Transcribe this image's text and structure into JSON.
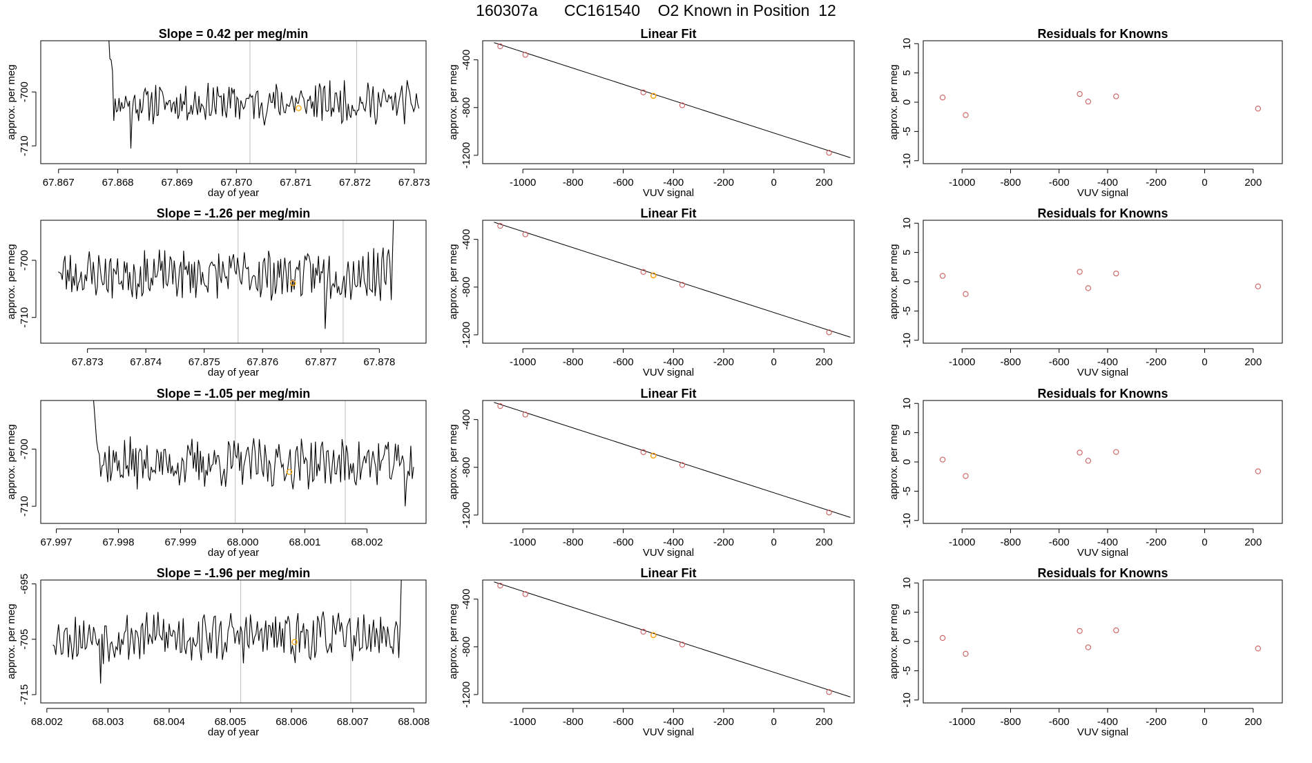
{
  "figure": {
    "title": "160307a      CC161540    O2 Known in Position  12"
  },
  "colors": {
    "line": "#000000",
    "frame": "#000000",
    "refline": "#bebebe",
    "known_point": "#cd5c5c",
    "sample_point": "#ffa500"
  },
  "chart_data": [
    {
      "type": "line",
      "title": "Slope =  0.42  per meg/min",
      "xlabel": "day of year",
      "ylabel": "approx. per meg",
      "xlim": [
        67.8667,
        67.8732
      ],
      "ylim": [
        -713.3,
        -690.5
      ],
      "xticks": [
        67.867,
        67.868,
        67.869,
        67.87,
        67.871,
        67.872,
        67.873
      ],
      "xtick_labels": [
        "67.867",
        "67.868",
        "67.869",
        "67.870",
        "67.871",
        "67.872",
        "67.873"
      ],
      "yticks": [
        -710,
        -700
      ],
      "ytick_labels": [
        "-710",
        "-700"
      ],
      "vlines": [
        67.87023,
        67.87203
      ],
      "sample_point": {
        "x": 67.87105,
        "y": -703.0
      },
      "series": [
        {
          "x_start": 67.8678,
          "x_end": 67.87308,
          "n": 240,
          "start_value": -682,
          "base": -702,
          "amp": 2.0,
          "settle": 6,
          "seed": 11,
          "features": [
            {
              "x": 67.86822,
              "y": -710.5
            },
            {
              "x": 67.86848,
              "y": -700.5
            }
          ]
        }
      ]
    },
    {
      "type": "scatter",
      "title": "Linear Fit",
      "xlabel": "VUV signal",
      "ylabel": "approx. per meg",
      "xlim": [
        -1160,
        320
      ],
      "ylim": [
        -1270,
        -240
      ],
      "xticks": [
        -1000,
        -800,
        -600,
        -400,
        -200,
        0,
        200
      ],
      "xtick_labels": [
        "-1000",
        "-800",
        "-600",
        "-400",
        "-200",
        "0",
        "200"
      ],
      "yticks": [
        -1200,
        -800,
        -400
      ],
      "ytick_labels": [
        "-1200",
        "-800",
        "-400"
      ],
      "fit_line": [
        [
          -1115,
          -256
        ],
        [
          305,
          -1220
        ]
      ],
      "points": [
        {
          "x": -1090,
          "y": -287
        },
        {
          "x": -990,
          "y": -358
        },
        {
          "x": -520,
          "y": -673
        },
        {
          "x": -480,
          "y": -702
        },
        {
          "x": -365,
          "y": -781
        },
        {
          "x": 220,
          "y": -1179
        }
      ],
      "sample_point": {
        "x": -480,
        "y": -702
      }
    },
    {
      "type": "scatter",
      "title": "Residuals for Knowns",
      "xlabel": "VUV signal",
      "ylabel": "approx. per meg",
      "xlim": [
        -1160,
        320
      ],
      "ylim": [
        -10.5,
        10.5
      ],
      "xticks": [
        -1000,
        -800,
        -600,
        -400,
        -200,
        0,
        200
      ],
      "xtick_labels": [
        "-1000",
        "-800",
        "-600",
        "-400",
        "-200",
        "0",
        "200"
      ],
      "yticks": [
        -10,
        -5,
        0,
        5,
        10
      ],
      "ytick_labels": [
        "-10",
        "-5",
        "0",
        "5",
        "10"
      ],
      "points": [
        {
          "x": -1080,
          "y": 0.8
        },
        {
          "x": -985,
          "y": -2.2
        },
        {
          "x": -515,
          "y": 1.4
        },
        {
          "x": -480,
          "y": 0.1
        },
        {
          "x": -365,
          "y": 1.0
        },
        {
          "x": 220,
          "y": -1.1
        }
      ]
    },
    {
      "type": "line",
      "title": "Slope =  -1.26  per meg/min",
      "xlabel": "day of year",
      "ylabel": "approx. per meg",
      "xlim": [
        67.8722,
        67.8788
      ],
      "ylim": [
        -714.5,
        -693
      ],
      "xticks": [
        67.873,
        67.874,
        67.875,
        67.876,
        67.877,
        67.878
      ],
      "xtick_labels": [
        "67.873",
        "67.874",
        "67.875",
        "67.876",
        "67.877",
        "67.878"
      ],
      "yticks": [
        -710,
        -700
      ],
      "ytick_labels": [
        "-710",
        "-700"
      ],
      "vlines": [
        67.87558,
        67.87738
      ],
      "sample_point": {
        "x": 67.87652,
        "y": -704.0
      },
      "series": [
        {
          "x_start": 67.8725,
          "x_end": 67.87825,
          "n": 250,
          "start_value": -702,
          "base": -702.5,
          "amp": 2.3,
          "settle": 2,
          "seed": 23,
          "features": [
            {
              "x": 67.87708,
              "y": -712.0
            },
            {
              "x": 67.878,
              "y": -704.0
            },
            {
              "x": 67.87825,
              "y": -690.0
            }
          ]
        }
      ]
    },
    {
      "type": "scatter",
      "title": "Linear Fit",
      "xlabel": "VUV signal",
      "ylabel": "approx. per meg",
      "xlim": [
        -1160,
        320
      ],
      "ylim": [
        -1270,
        -240
      ],
      "xticks": [
        -1000,
        -800,
        -600,
        -400,
        -200,
        0,
        200
      ],
      "xtick_labels": [
        "-1000",
        "-800",
        "-600",
        "-400",
        "-200",
        "0",
        "200"
      ],
      "yticks": [
        -1200,
        -800,
        -400
      ],
      "ytick_labels": [
        "-1200",
        "-800",
        "-400"
      ],
      "fit_line": [
        [
          -1115,
          -256
        ],
        [
          305,
          -1220
        ]
      ],
      "points": [
        {
          "x": -1090,
          "y": -287
        },
        {
          "x": -990,
          "y": -358
        },
        {
          "x": -520,
          "y": -673
        },
        {
          "x": -480,
          "y": -702
        },
        {
          "x": -365,
          "y": -781
        },
        {
          "x": 220,
          "y": -1179
        }
      ],
      "sample_point": {
        "x": -480,
        "y": -702
      }
    },
    {
      "type": "scatter",
      "title": "Residuals for Knowns",
      "xlabel": "VUV signal",
      "ylabel": "approx. per meg",
      "xlim": [
        -1160,
        320
      ],
      "ylim": [
        -10.5,
        10.5
      ],
      "xticks": [
        -1000,
        -800,
        -600,
        -400,
        -200,
        0,
        200
      ],
      "xtick_labels": [
        "-1000",
        "-800",
        "-600",
        "-400",
        "-200",
        "0",
        "200"
      ],
      "yticks": [
        -10,
        -5,
        0,
        5,
        10
      ],
      "ytick_labels": [
        "-10",
        "-5",
        "0",
        "5",
        "10"
      ],
      "points": [
        {
          "x": -1080,
          "y": 1.0
        },
        {
          "x": -985,
          "y": -2.1
        },
        {
          "x": -515,
          "y": 1.7
        },
        {
          "x": -480,
          "y": -1.1
        },
        {
          "x": -365,
          "y": 1.4
        },
        {
          "x": 220,
          "y": -0.8
        }
      ]
    },
    {
      "type": "line",
      "title": "Slope =  -1.05  per meg/min",
      "xlabel": "day of year",
      "ylabel": "approx. per meg",
      "xlim": [
        67.99675,
        68.00295
      ],
      "ylim": [
        -713,
        -691.5
      ],
      "xticks": [
        67.997,
        67.998,
        67.999,
        68.0,
        68.001,
        68.002
      ],
      "xtick_labels": [
        "67.997",
        "67.998",
        "67.999",
        "68.000",
        "68.001",
        "68.002"
      ],
      "yticks": [
        -710,
        -700
      ],
      "ytick_labels": [
        "-710",
        "-700"
      ],
      "vlines": [
        67.99988,
        68.00165
      ],
      "sample_point": {
        "x": 68.00075,
        "y": -704.0
      },
      "series": [
        {
          "x_start": 67.99758,
          "x_end": 68.00275,
          "n": 230,
          "start_value": -690,
          "base": -702.5,
          "amp": 2.3,
          "settle": 6,
          "seed": 37,
          "features": [
            {
              "x": 68.00262,
              "y": -710.0
            }
          ]
        }
      ]
    },
    {
      "type": "scatter",
      "title": "Linear Fit",
      "xlabel": "VUV signal",
      "ylabel": "approx. per meg",
      "xlim": [
        -1160,
        320
      ],
      "ylim": [
        -1270,
        -240
      ],
      "xticks": [
        -1000,
        -800,
        -600,
        -400,
        -200,
        0,
        200
      ],
      "xtick_labels": [
        "-1000",
        "-800",
        "-600",
        "-400",
        "-200",
        "0",
        "200"
      ],
      "yticks": [
        -1200,
        -800,
        -400
      ],
      "ytick_labels": [
        "-1200",
        "-800",
        "-400"
      ],
      "fit_line": [
        [
          -1115,
          -256
        ],
        [
          305,
          -1220
        ]
      ],
      "points": [
        {
          "x": -1090,
          "y": -287
        },
        {
          "x": -990,
          "y": -358
        },
        {
          "x": -520,
          "y": -673
        },
        {
          "x": -480,
          "y": -702
        },
        {
          "x": -365,
          "y": -781
        },
        {
          "x": 220,
          "y": -1179
        }
      ],
      "sample_point": {
        "x": -480,
        "y": -702
      }
    },
    {
      "type": "scatter",
      "title": "Residuals for Knowns",
      "xlabel": "VUV signal",
      "ylabel": "approx. per meg",
      "xlim": [
        -1160,
        320
      ],
      "ylim": [
        -10.5,
        10.5
      ],
      "xticks": [
        -1000,
        -800,
        -600,
        -400,
        -200,
        0,
        200
      ],
      "xtick_labels": [
        "-1000",
        "-800",
        "-600",
        "-400",
        "-200",
        "0",
        "200"
      ],
      "yticks": [
        -10,
        -5,
        0,
        5,
        10
      ],
      "ytick_labels": [
        "-10",
        "-5",
        "0",
        "5",
        "10"
      ],
      "points": [
        {
          "x": -1080,
          "y": 0.4
        },
        {
          "x": -985,
          "y": -2.4
        },
        {
          "x": -515,
          "y": 1.6
        },
        {
          "x": -480,
          "y": 0.2
        },
        {
          "x": -365,
          "y": 1.7
        },
        {
          "x": 220,
          "y": -1.6
        }
      ]
    },
    {
      "type": "line",
      "title": "Slope =  -1.96  per meg/min",
      "xlabel": "day of year",
      "ylabel": "approx. per meg",
      "xlim": [
        68.0019,
        68.0082
      ],
      "ylim": [
        -716.5,
        -694.3
      ],
      "xticks": [
        68.002,
        68.003,
        68.004,
        68.005,
        68.006,
        68.007,
        68.008
      ],
      "xtick_labels": [
        "68.002",
        "68.003",
        "68.004",
        "68.005",
        "68.006",
        "68.007",
        "68.008"
      ],
      "yticks": [
        -715,
        -705,
        -695
      ],
      "ytick_labels": [
        "-715",
        "-705",
        "-695"
      ],
      "vlines": [
        68.00517,
        68.00697
      ],
      "sample_point": {
        "x": 68.00605,
        "y": -705.5
      },
      "series": [
        {
          "x_start": 68.0021,
          "x_end": 68.0078,
          "n": 250,
          "start_value": -706,
          "base": -704.5,
          "amp": 2.4,
          "settle": 2,
          "seed": 53,
          "features": [
            {
              "x": 68.00288,
              "y": -713.0
            },
            {
              "x": 68.0078,
              "y": -692.0
            }
          ]
        }
      ]
    },
    {
      "type": "scatter",
      "title": "Linear Fit",
      "xlabel": "VUV signal",
      "ylabel": "approx. per meg",
      "xlim": [
        -1160,
        320
      ],
      "ylim": [
        -1270,
        -240
      ],
      "xticks": [
        -1000,
        -800,
        -600,
        -400,
        -200,
        0,
        200
      ],
      "xtick_labels": [
        "-1000",
        "-800",
        "-600",
        "-400",
        "-200",
        "0",
        "200"
      ],
      "yticks": [
        -1200,
        -800,
        -400
      ],
      "ytick_labels": [
        "-1200",
        "-800",
        "-400"
      ],
      "fit_line": [
        [
          -1115,
          -256
        ],
        [
          305,
          -1220
        ]
      ],
      "points": [
        {
          "x": -1090,
          "y": -287
        },
        {
          "x": -990,
          "y": -358
        },
        {
          "x": -520,
          "y": -673
        },
        {
          "x": -480,
          "y": -702
        },
        {
          "x": -365,
          "y": -781
        },
        {
          "x": 220,
          "y": -1179
        }
      ],
      "sample_point": {
        "x": -480,
        "y": -702
      }
    },
    {
      "type": "scatter",
      "title": "Residuals for Knowns",
      "xlabel": "VUV signal",
      "ylabel": "approx. per meg",
      "xlim": [
        -1160,
        320
      ],
      "ylim": [
        -10.5,
        10.5
      ],
      "xticks": [
        -1000,
        -800,
        -600,
        -400,
        -200,
        0,
        200
      ],
      "xtick_labels": [
        "-1000",
        "-800",
        "-600",
        "-400",
        "-200",
        "0",
        "200"
      ],
      "yticks": [
        -10,
        -5,
        0,
        5,
        10
      ],
      "ytick_labels": [
        "-10",
        "-5",
        "0",
        "5",
        "10"
      ],
      "points": [
        {
          "x": -1080,
          "y": 0.6
        },
        {
          "x": -985,
          "y": -2.1
        },
        {
          "x": -515,
          "y": 1.8
        },
        {
          "x": -480,
          "y": -1.0
        },
        {
          "x": -365,
          "y": 1.9
        },
        {
          "x": 220,
          "y": -1.2
        }
      ]
    }
  ]
}
